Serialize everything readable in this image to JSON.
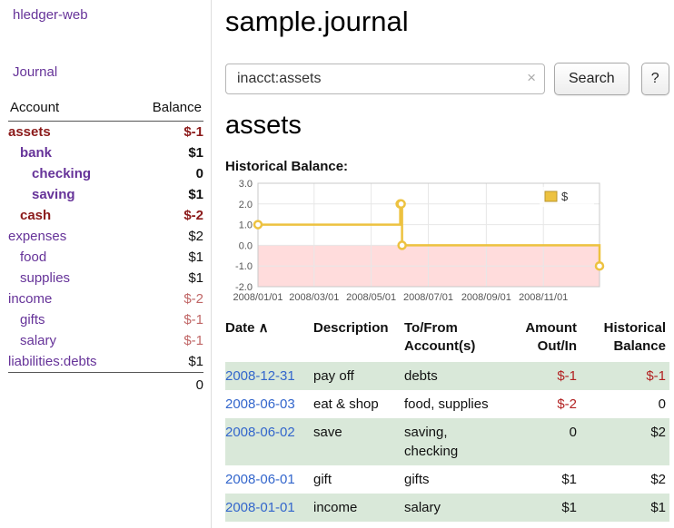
{
  "colors": {
    "accent_purple": "#663399",
    "link_blue": "#3366cc",
    "negative_red": "#b22222",
    "negative_maroon": "#8b1a1a",
    "negative_soft": "#c06666",
    "row_green": "#d9e8d9",
    "chart_line": "#edc240",
    "chart_negative_fill": "#ffdcdc"
  },
  "app": {
    "brand": "hledger-web",
    "nav_journal": "Journal"
  },
  "sidebar": {
    "header": {
      "account": "Account",
      "balance": "Balance"
    },
    "accounts": [
      {
        "name": "assets",
        "balance": "$-1",
        "indent": 0,
        "bold": true,
        "negative": true
      },
      {
        "name": "bank",
        "balance": "$1",
        "indent": 1,
        "bold": true,
        "negative": false
      },
      {
        "name": "checking",
        "balance": "0",
        "indent": 2,
        "bold": true,
        "negative": false
      },
      {
        "name": "saving",
        "balance": "$1",
        "indent": 2,
        "bold": true,
        "negative": false
      },
      {
        "name": "cash",
        "balance": "$-2",
        "indent": 1,
        "bold": true,
        "negative": true
      },
      {
        "name": "expenses",
        "balance": "$2",
        "indent": 0,
        "bold": false,
        "negative": false
      },
      {
        "name": "food",
        "balance": "$1",
        "indent": 1,
        "bold": false,
        "negative": false
      },
      {
        "name": "supplies",
        "balance": "$1",
        "indent": 1,
        "bold": false,
        "negative": false
      },
      {
        "name": "income",
        "balance": "$-2",
        "indent": 0,
        "bold": false,
        "negative": true
      },
      {
        "name": "gifts",
        "balance": "$-1",
        "indent": 1,
        "bold": false,
        "negative": true
      },
      {
        "name": "salary",
        "balance": "$-1",
        "indent": 1,
        "bold": false,
        "negative": true
      },
      {
        "name": "liabilities:debts",
        "balance": "$1",
        "indent": 0,
        "bold": false,
        "negative": false
      }
    ],
    "total": "0"
  },
  "main": {
    "title": "sample.journal",
    "search": {
      "value": "inacct:assets",
      "clear_icon": "×",
      "button_label": "Search",
      "help_label": "?"
    },
    "account_heading": "assets",
    "chart_label": "Historical Balance:"
  },
  "chart_data": {
    "type": "line",
    "title": "Historical Balance:",
    "step": true,
    "grid": true,
    "legend_position": "top-right",
    "xlim": [
      "2008-01-01",
      "2008-12-31"
    ],
    "ylim": [
      -2,
      3
    ],
    "yticks": [
      3.0,
      2.0,
      1.0,
      0.0,
      -1.0,
      -2.0
    ],
    "xticks": [
      "2008/01/01",
      "2008/03/01",
      "2008/05/01",
      "2008/07/01",
      "2008/09/01",
      "2008/11/01"
    ],
    "negative_fill": "#ffdcdc",
    "series": [
      {
        "name": "$",
        "color": "#edc240",
        "points": [
          [
            "2008-01-01",
            1
          ],
          [
            "2008-06-01",
            2
          ],
          [
            "2008-06-02",
            2
          ],
          [
            "2008-06-03",
            0
          ],
          [
            "2008-12-31",
            -1
          ]
        ]
      }
    ]
  },
  "register": {
    "columns": [
      {
        "key": "date",
        "line1": "Date",
        "line2": "",
        "align": "left",
        "sort_icon": "∧",
        "sortable": true
      },
      {
        "key": "description",
        "line1": "Description",
        "line2": "",
        "align": "left"
      },
      {
        "key": "accounts",
        "line1": "To/From",
        "line2": "Account(s)",
        "align": "left"
      },
      {
        "key": "amount",
        "line1": "Amount",
        "line2": "Out/In",
        "align": "right"
      },
      {
        "key": "balance",
        "line1": "Historical",
        "line2": "Balance",
        "align": "right"
      }
    ],
    "rows": [
      {
        "date": "2008-12-31",
        "description": "pay off",
        "accounts": "debts",
        "amount": "$-1",
        "balance": "$-1"
      },
      {
        "date": "2008-06-03",
        "description": "eat & shop",
        "accounts": "food, supplies",
        "amount": "$-2",
        "balance": "0"
      },
      {
        "date": "2008-06-02",
        "description": "save",
        "accounts": "saving,\nchecking",
        "amount": "0",
        "balance": "$2"
      },
      {
        "date": "2008-06-01",
        "description": "gift",
        "accounts": "gifts",
        "amount": "$1",
        "balance": "$2"
      },
      {
        "date": "2008-01-01",
        "description": "income",
        "accounts": "salary",
        "amount": "$1",
        "balance": "$1"
      }
    ]
  }
}
